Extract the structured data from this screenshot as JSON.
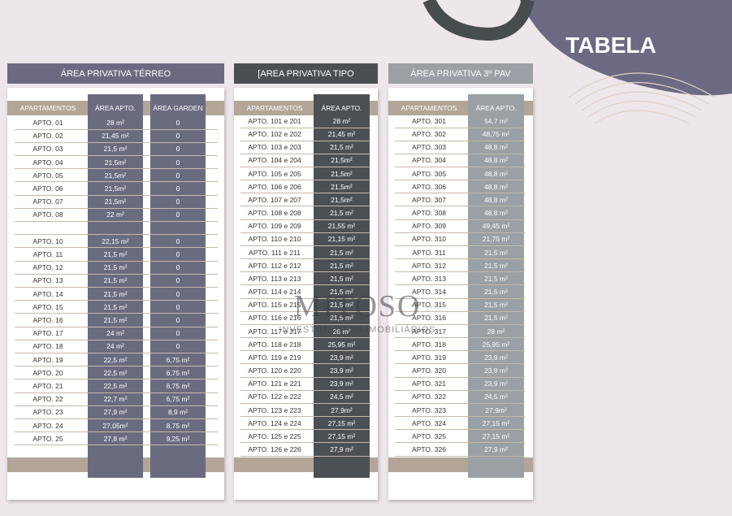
{
  "header": {
    "title": "TABELA"
  },
  "watermark": {
    "brand": "MITOSO",
    "tagline": "INVESTIMENTOS IMOBILIÁRIOS"
  },
  "tables": [
    {
      "title": "ÁREA PRIVATIVA TÉRREO",
      "headers": [
        "APARTAMENTOS",
        "ÁREA APTO.",
        "ÁREA GARDEN"
      ],
      "rows": [
        [
          "APTO. 01",
          "28 m²",
          "0"
        ],
        [
          "APTO. 02",
          "21,45 m²",
          "0"
        ],
        [
          "APTO. 03",
          "21,5 m²",
          "0"
        ],
        [
          "APTO. 04",
          "21,5m²",
          "0"
        ],
        [
          "APTO. 05",
          "21,5m²",
          "0"
        ],
        [
          "APTO. 06",
          "21,5m²",
          "0"
        ],
        [
          "APTO. 07",
          "21,5m²",
          "0"
        ],
        [
          "APTO. 08",
          "22 m²",
          "0"
        ],
        null,
        [
          "APTO. 10",
          "22,15 m²",
          "0"
        ],
        [
          "APTO. 11",
          "21,5 m²",
          "0"
        ],
        [
          "APTO. 12",
          "21,5 m²",
          "0"
        ],
        [
          "APTO. 13",
          "21,5 m²",
          "0"
        ],
        [
          "APTO. 14",
          "21,5 m²",
          "0"
        ],
        [
          "APTO. 15",
          "21,5 m²",
          "0"
        ],
        [
          "APTO. 16",
          "21,5 m²",
          "0"
        ],
        [
          "APTO. 17",
          "24 m²",
          "0"
        ],
        [
          "APTO. 18",
          "24 m²",
          "0"
        ],
        [
          "APTO. 19",
          "22,5 m²",
          "6,75 m²"
        ],
        [
          "APTO. 20",
          "22,5 m²",
          "6,75 m²"
        ],
        [
          "APTO. 21",
          "22,5 m²",
          "6,75 m²"
        ],
        [
          "APTO. 22",
          "22,7 m²",
          "6,75 m²"
        ],
        [
          "APTO. 23",
          "27,9 m²",
          "8,9 m²"
        ],
        [
          "APTO. 24",
          "27,05m²",
          "8,75 m²"
        ],
        [
          "APTO. 25",
          "27,8 m²",
          "9,25 m²"
        ]
      ]
    },
    {
      "title": "[AREA PRIVATIVA TIPO",
      "headers": [
        "APARTAMENTOS",
        "ÁREA APTO."
      ],
      "rows": [
        [
          "APTO. 101 e 201",
          "28 m²"
        ],
        [
          "APTO. 102 e 202",
          "21,45 m²"
        ],
        [
          "APTO. 103 e 203",
          "21,5 m²"
        ],
        [
          "APTO. 104 e 204",
          "21,5m²"
        ],
        [
          "APTO. 105 e 205",
          "21,5m²"
        ],
        [
          "APTO. 106 e 206",
          "21,5m²"
        ],
        [
          "APTO. 107 e 207",
          "21,5m²"
        ],
        [
          "APTO. 108 e 208",
          "21,5 m²"
        ],
        [
          "APTO. 109 e 209",
          "21,55 m²"
        ],
        [
          "APTO. 110 e 210",
          "21,15 m²"
        ],
        [
          "APTO. 111 e 211",
          "21,5 m²"
        ],
        [
          "APTO. 112 e 212",
          "21,5 m²"
        ],
        [
          "APTO. 113 e 213",
          "21,5 m²"
        ],
        [
          "APTO. 114 e 214",
          "21,5 m²"
        ],
        [
          "APTO. 115 e 215",
          "21,5 m²"
        ],
        [
          "APTO. 116 e 216",
          "21,5 m²"
        ],
        [
          "APTO. 117 e 217",
          "28 m²"
        ],
        [
          "APTO. 118 e 218",
          "25,95 m²"
        ],
        [
          "APTO. 119 e 219",
          "23,9 m²"
        ],
        [
          "APTO. 120 e 220",
          "23,9 m²"
        ],
        [
          "APTO. 121 e 221",
          "23,9 m²"
        ],
        [
          "APTO. 122 e 222",
          "24,5 m²"
        ],
        [
          "APTO. 123 e 223",
          "27,9m²"
        ],
        [
          "APTO. 124 e 224",
          "27,15 m²"
        ],
        [
          "APTO. 125 e 225",
          "27,15 m²"
        ],
        [
          "APTO. 126 e 226",
          "27,9 m²"
        ]
      ]
    },
    {
      "title": "ÁREA PRIVATIVA 3º PAV",
      "headers": [
        "APARTAMENTOS",
        "ÁREA APTO."
      ],
      "rows": [
        [
          "APTO. 301",
          "54,7 m²"
        ],
        [
          "APTO. 302",
          "48,75 m²"
        ],
        [
          "APTO. 303",
          "48,8 m²"
        ],
        [
          "APTO. 304",
          "48,8 m²"
        ],
        [
          "APTO. 305",
          "48,8 m²"
        ],
        [
          "APTO. 306",
          "48,8 m²"
        ],
        [
          "APTO. 307",
          "48,8 m²"
        ],
        [
          "APTO. 308",
          "48,8 m²"
        ],
        [
          "APTO. 309",
          "49,45 m²"
        ],
        [
          "APTO. 310",
          "21,75 m²"
        ],
        [
          "APTO. 311",
          "21,5 m²"
        ],
        [
          "APTO. 312",
          "21,5 m²"
        ],
        [
          "APTO. 313",
          "21,5 m²"
        ],
        [
          "APTO. 314",
          "21,5 m²"
        ],
        [
          "APTO. 315",
          "21,5 m²"
        ],
        [
          "APTO. 316",
          "21,5 m²"
        ],
        [
          "APTO. 317",
          "28 m²"
        ],
        [
          "APTO. 318",
          "25,95 m²"
        ],
        [
          "APTO. 319",
          "23,9 m²"
        ],
        [
          "APTO. 320",
          "23,9 m²"
        ],
        [
          "APTO. 321",
          "23,9 m²"
        ],
        [
          "APTO. 322",
          "24,5 m²"
        ],
        [
          "APTO. 323",
          "27,9m²"
        ],
        [
          "APTO. 324",
          "27,15 m²"
        ],
        [
          "APTO. 325",
          "27,15 m²"
        ],
        [
          "APTO. 326",
          "27,9 m²"
        ]
      ]
    }
  ]
}
